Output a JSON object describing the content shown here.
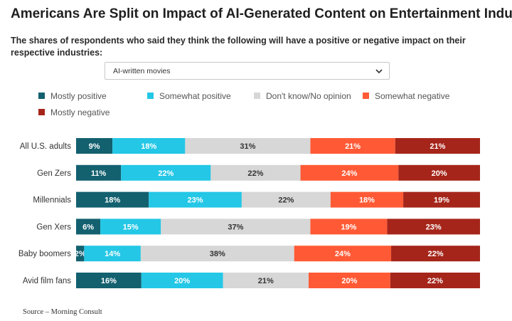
{
  "title": "Americans Are Split on Impact of AI-Generated Content on Entertainment Industry",
  "subtitle": "The shares of respondents who said they think the following will have a positive or negative impact on their respective industries:",
  "dropdown": {
    "selected": "AI-written movies",
    "icon": "chevron-down-icon"
  },
  "source": "Source – Morning Consult",
  "chart_data": {
    "type": "bar",
    "orientation": "horizontal",
    "stacked": true,
    "normalized_percent": true,
    "categories": [
      "All U.S. adults",
      "Gen Zers",
      "Millennials",
      "Gen Xers",
      "Baby boomers",
      "Avid film fans"
    ],
    "series": [
      {
        "name": "Mostly positive",
        "color": "#13606f",
        "values": [
          9,
          11,
          18,
          6,
          2,
          16
        ]
      },
      {
        "name": "Somewhat positive",
        "color": "#24c7e6",
        "values": [
          18,
          22,
          23,
          15,
          14,
          20
        ]
      },
      {
        "name": "Don't know/No opinion",
        "color": "#d7d7d7",
        "values": [
          31,
          22,
          22,
          37,
          38,
          21
        ]
      },
      {
        "name": "Somewhat negative",
        "color": "#ff5a35",
        "values": [
          21,
          24,
          18,
          19,
          24,
          20
        ]
      },
      {
        "name": "Mostly negative",
        "color": "#a5251a",
        "values": [
          21,
          20,
          19,
          23,
          22,
          22
        ]
      }
    ],
    "legend_position": "top",
    "grid": false
  }
}
